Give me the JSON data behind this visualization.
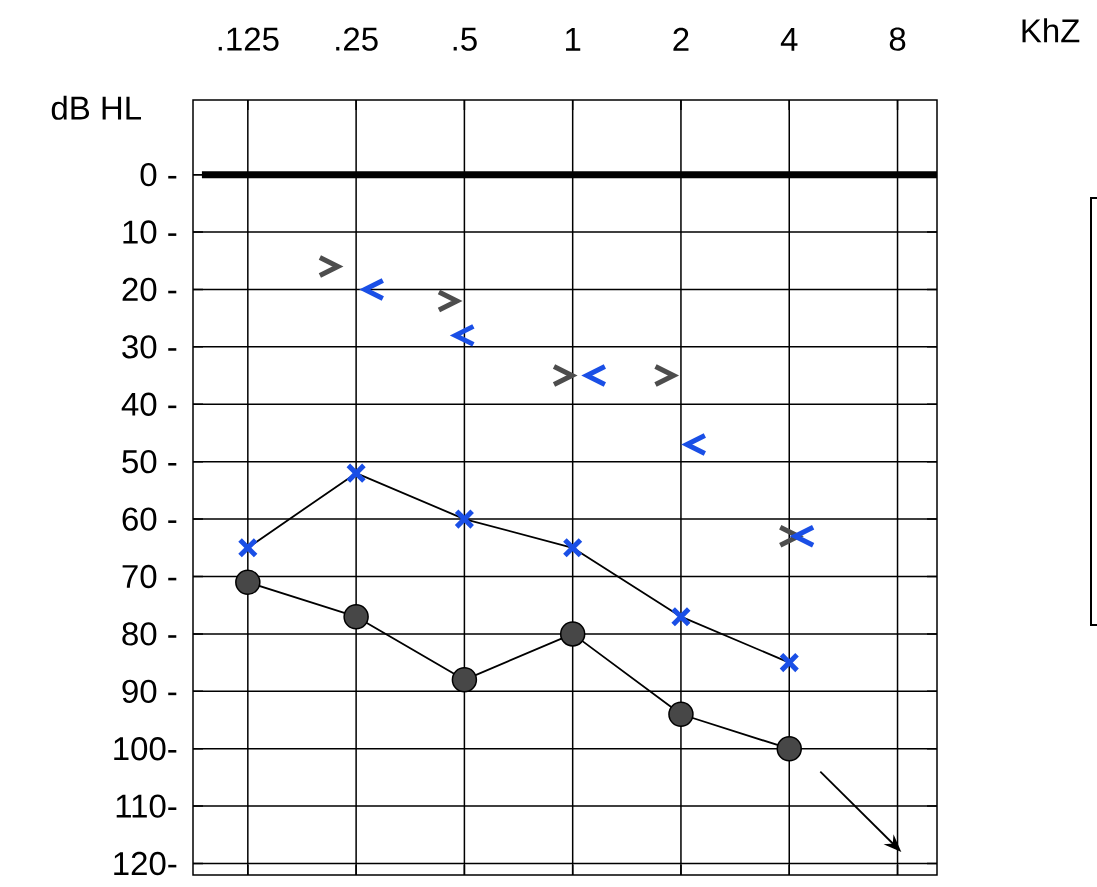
{
  "chart_data": {
    "type": "line",
    "ylabel": "dB  HL",
    "xlabel": "KhZ",
    "log": "x",
    "xlim": [
      0.088,
      10.3
    ],
    "xticks": [
      {
        "value": 0.125,
        "label": ".125"
      },
      {
        "value": 0.25,
        "label": ".25"
      },
      {
        "value": 0.5,
        "label": ".5"
      },
      1,
      2,
      4,
      8
    ],
    "ylim": [
      122,
      -13
    ],
    "yticks": [
      {
        "value": 0,
        "label": "0 -"
      },
      {
        "value": 10,
        "label": "10 -"
      },
      {
        "value": 20,
        "label": "20 -"
      },
      {
        "value": 30,
        "label": "30 -"
      },
      {
        "value": 40,
        "label": "40 -"
      },
      {
        "value": 50,
        "label": "50 -"
      },
      {
        "value": 60,
        "label": "60 -"
      },
      {
        "value": 70,
        "label": "70 -"
      },
      {
        "value": 80,
        "label": "80 -"
      },
      {
        "value": 90,
        "label": "90 -"
      },
      {
        "value": 100,
        "label": "100-"
      },
      {
        "value": 110,
        "label": "110-"
      },
      {
        "value": 120,
        "label": "120-"
      }
    ],
    "grid": true,
    "ref_lines": [
      {
        "axis": "y",
        "value": 0,
        "color": "#000000"
      }
    ],
    "series": [
      {
        "marker": "circle",
        "color": "#474747",
        "line_style": "solid",
        "x": [
          0.125,
          0.25,
          0.5,
          1,
          2,
          4
        ],
        "values": [
          71,
          77,
          88,
          80,
          94,
          100
        ]
      },
      {
        "marker": "cross",
        "color": "#1a4fe6",
        "line_style": "solid",
        "x": [
          0.125,
          0.25,
          0.5,
          1,
          2,
          4
        ],
        "values": [
          65,
          52,
          60,
          65,
          77,
          85
        ]
      },
      {
        "type": "scatter",
        "color": "#4d4d4d",
        "x": [
          0.21,
          0.45,
          0.94,
          1.8,
          4.0
        ],
        "values": [
          16,
          22,
          35,
          35,
          63
        ]
      },
      {
        "type": "scatter",
        "color": "#1a4fe6",
        "x": [
          0.28,
          0.5,
          1.16,
          2.2,
          4.4
        ],
        "values": [
          20,
          28,
          35,
          47,
          63
        ]
      }
    ]
  }
}
